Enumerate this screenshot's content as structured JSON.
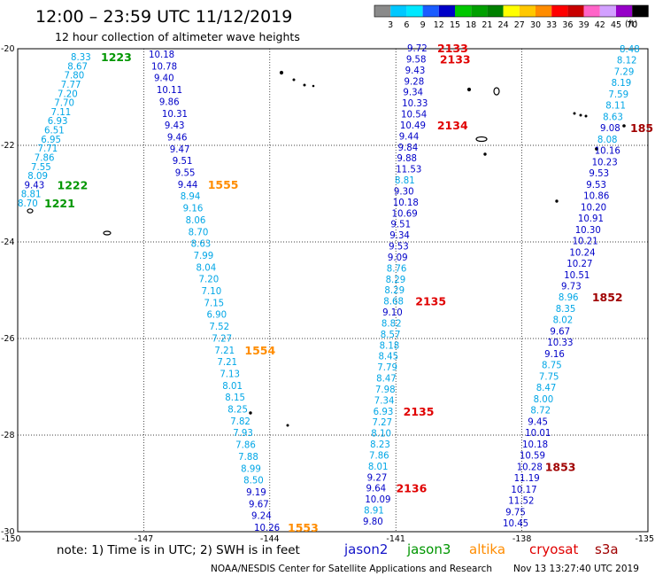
{
  "header": {
    "title": "12:00 – 23:59 UTC 11/12/2019",
    "subtitle": "12 hour collection of altimeter wave heights"
  },
  "colorbar": {
    "labels": [
      "3",
      "6",
      "9",
      "12",
      "15",
      "18",
      "21",
      "24",
      "27",
      "30",
      "33",
      "36",
      "39",
      "42",
      "45",
      "70"
    ],
    "unit": "(ft)",
    "colors": [
      "#8a8a8a",
      "#00c8ff",
      "#00e8ff",
      "#1a5cff",
      "#0000c8",
      "#00c800",
      "#00a000",
      "#008000",
      "#ffff00",
      "#ffc800",
      "#ff8c00",
      "#ff0000",
      "#c80000",
      "#ff64c8",
      "#d2a0ff",
      "#9600c8",
      "#000000"
    ]
  },
  "axes": {
    "x_ticks": [
      "-150",
      "-147",
      "-144",
      "-141",
      "-138",
      "-135"
    ],
    "y_ticks": [
      "-20",
      "-22",
      "-24",
      "-26",
      "-28",
      "-30"
    ]
  },
  "satellites": [
    {
      "name": "jason2",
      "color": "#1414c8"
    },
    {
      "name": "jason3",
      "color": "#009600"
    },
    {
      "name": "altika",
      "color": "#ff8c00"
    },
    {
      "name": "cryosat",
      "color": "#e00000"
    },
    {
      "name": "s3a",
      "color": "#a00000"
    }
  ],
  "footer": {
    "note": "note: 1) Time is in UTC; 2) SWH is in feet",
    "credit": "NOAA/NESDIS Center for Satellite Applications and Research",
    "timestamp": "Nov 13 13:27:40 UTC 2019"
  },
  "tracks": [
    {
      "id": "track-a",
      "points": [
        {
          "v": "8.33",
          "c": "c"
        },
        {
          "v": "8.67",
          "c": "c"
        },
        {
          "v": "7.80",
          "c": "c"
        },
        {
          "v": "7.77",
          "c": "c"
        },
        {
          "v": "7.20",
          "c": "c"
        },
        {
          "v": "7.70",
          "c": "c"
        },
        {
          "v": "7.11",
          "c": "c"
        },
        {
          "v": "6.93",
          "c": "c"
        },
        {
          "v": "6.51",
          "c": "c"
        },
        {
          "v": "6.95",
          "c": "c"
        },
        {
          "v": "7.71",
          "c": "c"
        },
        {
          "v": "7.86",
          "c": "c"
        },
        {
          "v": "7.55",
          "c": "c"
        },
        {
          "v": "8.09",
          "c": "c"
        },
        {
          "v": "9.43",
          "c": "b"
        },
        {
          "v": "8.81",
          "c": "c"
        },
        {
          "v": "8.70",
          "c": "c"
        }
      ],
      "times": [
        {
          "t": "1223",
          "color": "#009600",
          "after": 0
        },
        {
          "t": "1222",
          "color": "#009600",
          "after": 14
        },
        {
          "t": "1221",
          "color": "#009600",
          "after": 16
        }
      ]
    },
    {
      "id": "track-b",
      "points": [
        {
          "v": "10.18",
          "c": "b"
        },
        {
          "v": "10.78",
          "c": "b"
        },
        {
          "v": "9.40",
          "c": "b"
        },
        {
          "v": "10.11",
          "c": "b"
        },
        {
          "v": "9.86",
          "c": "b"
        },
        {
          "v": "10.31",
          "c": "b"
        },
        {
          "v": "9.43",
          "c": "b"
        },
        {
          "v": "9.46",
          "c": "b"
        },
        {
          "v": "9.47",
          "c": "b"
        },
        {
          "v": "9.51",
          "c": "b"
        },
        {
          "v": "9.55",
          "c": "b"
        },
        {
          "v": "9.44",
          "c": "b"
        },
        {
          "v": "8.94",
          "c": "c"
        },
        {
          "v": "9.16",
          "c": "c"
        },
        {
          "v": "8.06",
          "c": "c"
        },
        {
          "v": "8.70",
          "c": "c"
        },
        {
          "v": "8.63",
          "c": "c"
        },
        {
          "v": "7.99",
          "c": "c"
        },
        {
          "v": "8.04",
          "c": "c"
        },
        {
          "v": "7.20",
          "c": "c"
        },
        {
          "v": "7.10",
          "c": "c"
        },
        {
          "v": "7.15",
          "c": "c"
        },
        {
          "v": "6.90",
          "c": "c"
        },
        {
          "v": "7.52",
          "c": "c"
        },
        {
          "v": "7.27",
          "c": "c"
        },
        {
          "v": "7.21",
          "c": "c"
        },
        {
          "v": "7.21",
          "c": "c"
        },
        {
          "v": "7.13",
          "c": "c"
        },
        {
          "v": "8.01",
          "c": "c"
        },
        {
          "v": "8.15",
          "c": "c"
        },
        {
          "v": "8.25",
          "c": "c"
        },
        {
          "v": "7.82",
          "c": "c"
        },
        {
          "v": "7.93",
          "c": "c"
        },
        {
          "v": "7.86",
          "c": "c"
        },
        {
          "v": "7.88",
          "c": "c"
        },
        {
          "v": "8.99",
          "c": "c"
        },
        {
          "v": "8.50",
          "c": "c"
        },
        {
          "v": "9.19",
          "c": "b"
        },
        {
          "v": "9.67",
          "c": "b"
        },
        {
          "v": "9.24",
          "c": "b"
        },
        {
          "v": "10.26",
          "c": "b"
        }
      ],
      "times": [
        {
          "t": "1555",
          "color": "#ff8c00",
          "after": 11
        },
        {
          "t": "1554",
          "color": "#ff8c00",
          "after": 25
        },
        {
          "t": "1553",
          "color": "#ff8c00",
          "after": 40
        }
      ]
    },
    {
      "id": "track-c",
      "points": [
        {
          "v": "9.72",
          "c": "b"
        },
        {
          "v": "9.58",
          "c": "b"
        },
        {
          "v": "9.43",
          "c": "b"
        },
        {
          "v": "9.28",
          "c": "b"
        },
        {
          "v": "9.34",
          "c": "b"
        },
        {
          "v": "10.33",
          "c": "b"
        },
        {
          "v": "10.54",
          "c": "b"
        },
        {
          "v": "10.49",
          "c": "b"
        },
        {
          "v": "9.44",
          "c": "b"
        },
        {
          "v": "9.84",
          "c": "b"
        },
        {
          "v": "9.88",
          "c": "b"
        },
        {
          "v": "11.53",
          "c": "b"
        },
        {
          "v": "8.81",
          "c": "c"
        },
        {
          "v": "9.30",
          "c": "b"
        },
        {
          "v": "10.18",
          "c": "b"
        },
        {
          "v": "10.69",
          "c": "b"
        },
        {
          "v": "9.51",
          "c": "b"
        },
        {
          "v": "9.34",
          "c": "b"
        },
        {
          "v": "9.53",
          "c": "b"
        },
        {
          "v": "9.09",
          "c": "b"
        },
        {
          "v": "8.76",
          "c": "c"
        },
        {
          "v": "8.29",
          "c": "c"
        },
        {
          "v": "8.29",
          "c": "c"
        },
        {
          "v": "8.68",
          "c": "c"
        },
        {
          "v": "9.10",
          "c": "b"
        },
        {
          "v": "8.82",
          "c": "c"
        },
        {
          "v": "8.57",
          "c": "c"
        },
        {
          "v": "8.18",
          "c": "c"
        },
        {
          "v": "8.45",
          "c": "c"
        },
        {
          "v": "7.79",
          "c": "c"
        },
        {
          "v": "8.47",
          "c": "c"
        },
        {
          "v": "7.98",
          "c": "c"
        },
        {
          "v": "7.34",
          "c": "c"
        },
        {
          "v": "6.93",
          "c": "c"
        },
        {
          "v": "7.27",
          "c": "c"
        },
        {
          "v": "8.10",
          "c": "c"
        },
        {
          "v": "8.23",
          "c": "c"
        },
        {
          "v": "7.86",
          "c": "c"
        },
        {
          "v": "8.01",
          "c": "c"
        },
        {
          "v": "9.27",
          "c": "b"
        },
        {
          "v": "9.64",
          "c": "b"
        },
        {
          "v": "10.09",
          "c": "b"
        },
        {
          "v": "8.91",
          "c": "c"
        },
        {
          "v": "9.80",
          "c": "b"
        }
      ],
      "times": [
        {
          "t": "2133",
          "color": "#e00000",
          "after": 0
        },
        {
          "t": "2133",
          "color": "#e00000",
          "after": 1
        },
        {
          "t": "2134",
          "color": "#e00000",
          "after": 7
        },
        {
          "t": "2135",
          "color": "#e00000",
          "after": 23
        },
        {
          "t": "2135",
          "color": "#e00000",
          "after": 33
        },
        {
          "t": "2136",
          "color": "#e00000",
          "after": 40
        }
      ]
    },
    {
      "id": "track-d",
      "points": [
        {
          "v": "8.48",
          "c": "c"
        },
        {
          "v": "8.12",
          "c": "c"
        },
        {
          "v": "7.29",
          "c": "c"
        },
        {
          "v": "8.19",
          "c": "c"
        },
        {
          "v": "7.59",
          "c": "c"
        },
        {
          "v": "8.11",
          "c": "c"
        },
        {
          "v": "8.63",
          "c": "c"
        },
        {
          "v": "9.08",
          "c": "b"
        },
        {
          "v": "8.08",
          "c": "c"
        },
        {
          "v": "10.16",
          "c": "b"
        },
        {
          "v": "10.23",
          "c": "b"
        },
        {
          "v": "9.53",
          "c": "b"
        },
        {
          "v": "9.53",
          "c": "b"
        },
        {
          "v": "10.86",
          "c": "b"
        },
        {
          "v": "10.20",
          "c": "b"
        },
        {
          "v": "10.91",
          "c": "b"
        },
        {
          "v": "10.30",
          "c": "b"
        },
        {
          "v": "10.21",
          "c": "b"
        },
        {
          "v": "10.24",
          "c": "b"
        },
        {
          "v": "10.27",
          "c": "b"
        },
        {
          "v": "10.51",
          "c": "b"
        },
        {
          "v": "9.73",
          "c": "b"
        },
        {
          "v": "8.96",
          "c": "c"
        },
        {
          "v": "8.35",
          "c": "c"
        },
        {
          "v": "8.02",
          "c": "c"
        },
        {
          "v": "9.67",
          "c": "b"
        },
        {
          "v": "10.33",
          "c": "b"
        },
        {
          "v": "9.16",
          "c": "b"
        },
        {
          "v": "8.75",
          "c": "c"
        },
        {
          "v": "7.75",
          "c": "c"
        },
        {
          "v": "8.47",
          "c": "c"
        },
        {
          "v": "8.00",
          "c": "c"
        },
        {
          "v": "8.72",
          "c": "c"
        },
        {
          "v": "9.45",
          "c": "b"
        },
        {
          "v": "10.01",
          "c": "b"
        },
        {
          "v": "10.18",
          "c": "b"
        },
        {
          "v": "10.59",
          "c": "b"
        },
        {
          "v": "10.28",
          "c": "b"
        },
        {
          "v": "11.19",
          "c": "b"
        },
        {
          "v": "10.17",
          "c": "b"
        },
        {
          "v": "11.52",
          "c": "b"
        },
        {
          "v": "9.75",
          "c": "b"
        },
        {
          "v": "10.45",
          "c": "b"
        }
      ],
      "times": [
        {
          "t": "185",
          "color": "#a00000",
          "after": 7
        },
        {
          "t": "1852",
          "color": "#a00000",
          "after": 22
        },
        {
          "t": "1853",
          "color": "#a00000",
          "after": 37
        }
      ]
    }
  ]
}
